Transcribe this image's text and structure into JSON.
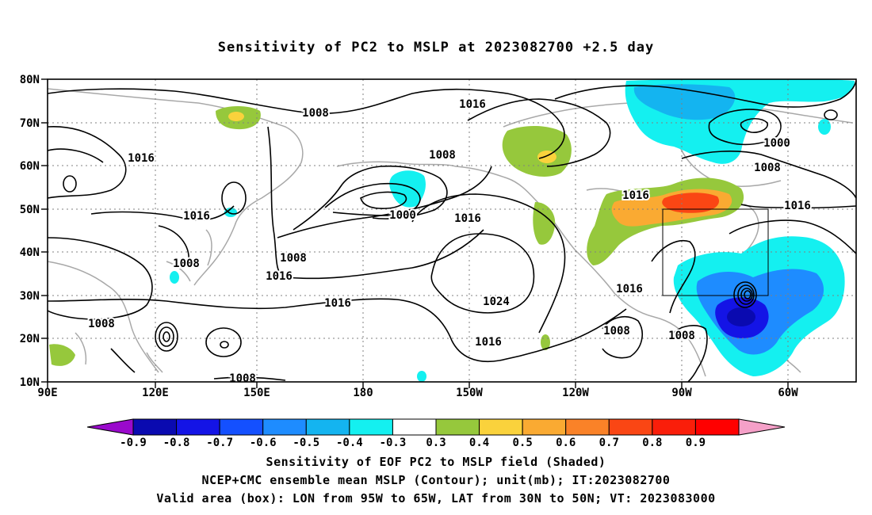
{
  "title": "Sensitivity of PC2 to MSLP at 2023082700 +2.5 day",
  "lat_labels": [
    "80N",
    "70N",
    "60N",
    "50N",
    "40N",
    "30N",
    "20N",
    "10N"
  ],
  "lon_labels": [
    "90E",
    "120E",
    "150E",
    "180",
    "150W",
    "120W",
    "90W",
    "60W"
  ],
  "contour_labels": [
    {
      "text": "1008"
    },
    {
      "text": "1016"
    },
    {
      "text": "1008"
    },
    {
      "text": "1016"
    },
    {
      "text": "1000"
    },
    {
      "text": "1016"
    },
    {
      "text": "1016"
    },
    {
      "text": "1008"
    },
    {
      "text": "1016"
    },
    {
      "text": "1000"
    },
    {
      "text": "1016"
    },
    {
      "text": "1008"
    },
    {
      "text": "1016"
    },
    {
      "text": "1008"
    },
    {
      "text": "1016"
    },
    {
      "text": "1024"
    },
    {
      "text": "1016"
    },
    {
      "text": "1008"
    },
    {
      "text": "1016"
    },
    {
      "text": "1008"
    },
    {
      "text": "1008"
    },
    {
      "text": "1008"
    }
  ],
  "colorbar": {
    "colors": [
      "#9a0acc",
      "#0a0ab0",
      "#1414e6",
      "#1450ff",
      "#1e8cff",
      "#14b4f0",
      "#14f0f0",
      "#ffffff",
      "#96c83c",
      "#fad23c",
      "#faaa32",
      "#fa8228",
      "#fa4614",
      "#fa1e0a",
      "#ff0000",
      "#f5a0c8"
    ],
    "labels": [
      "-0.9",
      "-0.8",
      "-0.7",
      "-0.6",
      "-0.5",
      "-0.4",
      "-0.3",
      "0.3",
      "0.4",
      "0.5",
      "0.6",
      "0.7",
      "0.8",
      "0.9"
    ]
  },
  "captions": {
    "line1": "Sensitivity of EOF PC2 to MSLP field (Shaded)",
    "line2": "NCEP+CMC ensemble mean MSLP (Contour); unit(mb); IT:2023082700",
    "line3": "Valid area (box): LON from 95W to 65W, LAT from 30N to 50N; VT: 2023083000"
  },
  "valid_box": {
    "lon_w": -95,
    "lon_e": -65,
    "lat_s": 30,
    "lat_n": 50
  }
}
